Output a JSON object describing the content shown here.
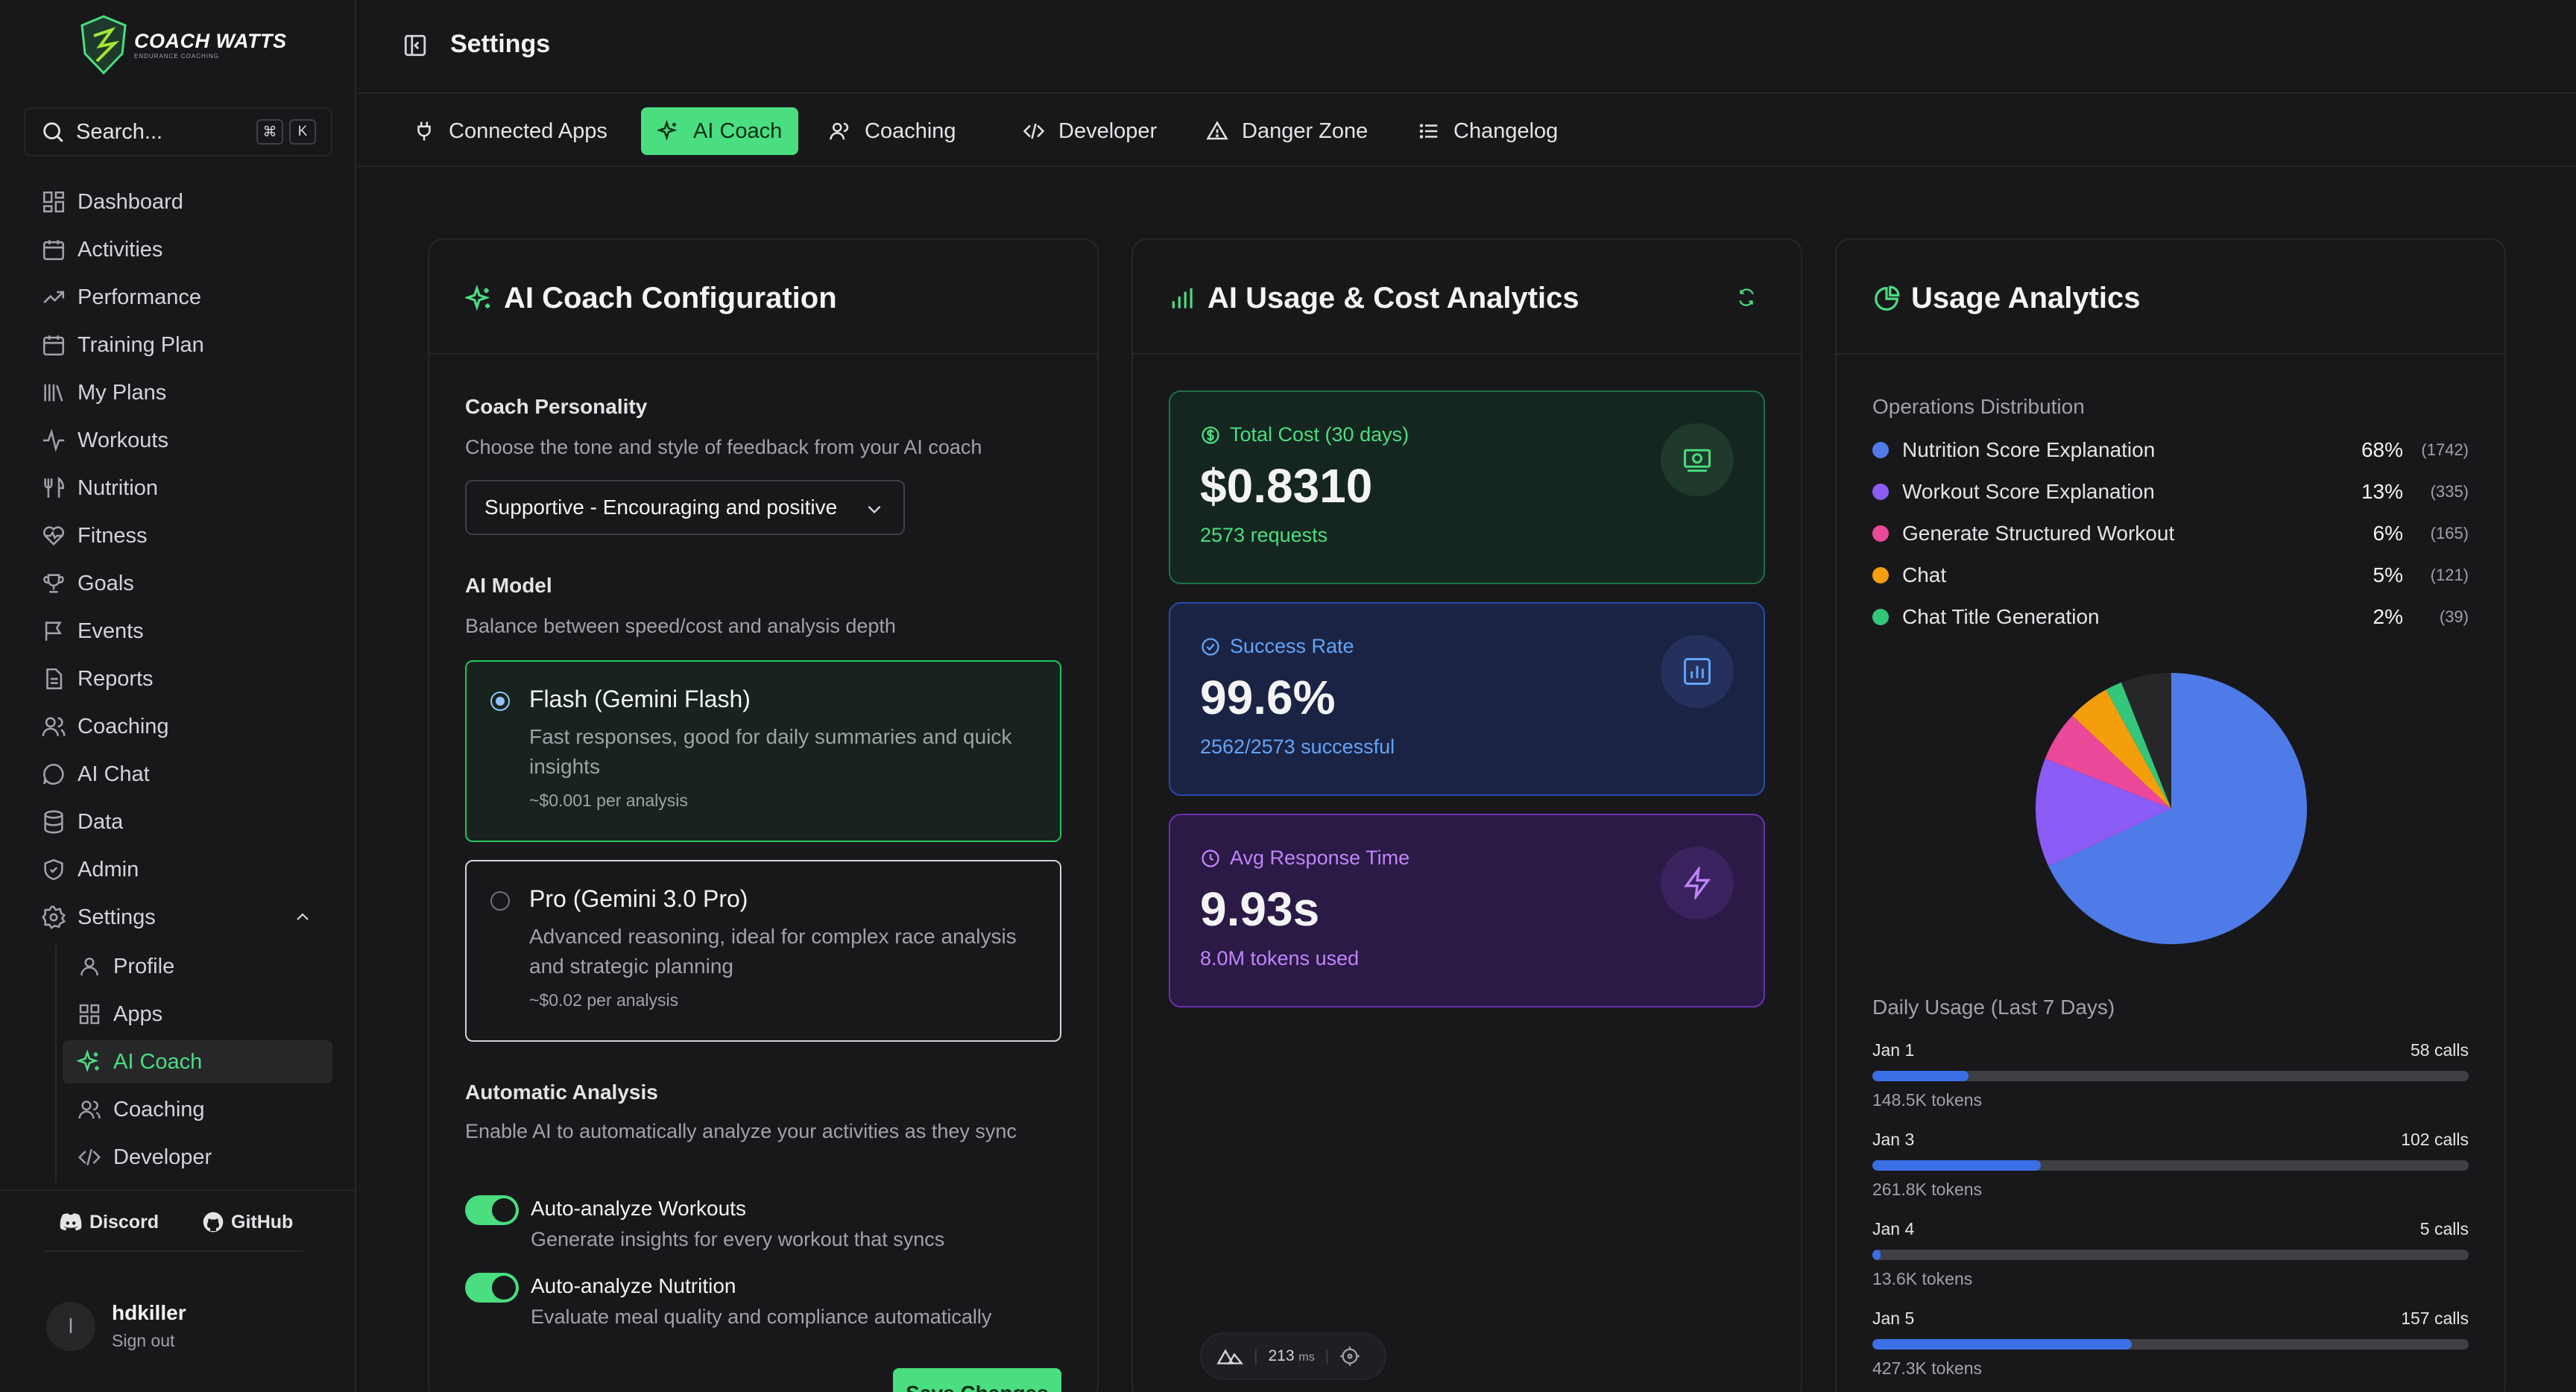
{
  "brand": {
    "name": "COACH WATTS",
    "tagline": "ENDURANCE COACHING"
  },
  "search": {
    "label": "Search...",
    "kbd1": "⌘",
    "kbd2": "K"
  },
  "nav": [
    {
      "label": "Dashboard",
      "icon": "dashboard-icon"
    },
    {
      "label": "Activities",
      "icon": "calendar-icon"
    },
    {
      "label": "Performance",
      "icon": "trend-icon"
    },
    {
      "label": "Training Plan",
      "icon": "calendar-icon"
    },
    {
      "label": "My Plans",
      "icon": "library-icon"
    },
    {
      "label": "Workouts",
      "icon": "pulse-icon"
    },
    {
      "label": "Nutrition",
      "icon": "utensils-icon"
    },
    {
      "label": "Fitness",
      "icon": "heart-pulse-icon"
    },
    {
      "label": "Goals",
      "icon": "trophy-icon"
    },
    {
      "label": "Events",
      "icon": "flag-icon"
    },
    {
      "label": "Reports",
      "icon": "file-icon"
    },
    {
      "label": "Coaching",
      "icon": "users-icon"
    },
    {
      "label": "AI Chat",
      "icon": "chat-icon"
    },
    {
      "label": "Data",
      "icon": "database-icon"
    },
    {
      "label": "Admin",
      "icon": "shield-icon"
    },
    {
      "label": "Settings",
      "icon": "gear-icon"
    }
  ],
  "subnav": [
    {
      "label": "Profile"
    },
    {
      "label": "Apps"
    },
    {
      "label": "AI Coach"
    },
    {
      "label": "Coaching"
    },
    {
      "label": "Developer"
    }
  ],
  "footer": {
    "discord": "Discord",
    "github": "GitHub"
  },
  "user": {
    "initial": "l",
    "name": "hdkiller",
    "signout": "Sign out"
  },
  "header": {
    "title": "Settings"
  },
  "tabs": [
    {
      "label": "Connected Apps"
    },
    {
      "label": "AI Coach"
    },
    {
      "label": "Coaching"
    },
    {
      "label": "Developer"
    },
    {
      "label": "Danger Zone"
    },
    {
      "label": "Changelog"
    }
  ],
  "config": {
    "title": "AI Coach Configuration",
    "personality_label": "Coach Personality",
    "personality_desc": "Choose the tone and style of feedback from your AI coach",
    "personality_value": "Supportive - Encouraging and positive",
    "model_label": "AI Model",
    "model_desc": "Balance between speed/cost and analysis depth",
    "models": [
      {
        "title": "Flash (Gemini Flash)",
        "desc": "Fast responses, good for daily summaries and quick insights",
        "price": "~$0.001 per analysis",
        "selected": true
      },
      {
        "title": "Pro (Gemini 3.0 Pro)",
        "desc": "Advanced reasoning, ideal for complex race analysis and strategic planning",
        "price": "~$0.02 per analysis",
        "selected": false
      }
    ],
    "auto_label": "Automatic Analysis",
    "auto_desc": "Enable AI to automatically analyze your activities as they sync",
    "toggles": [
      {
        "title": "Auto-analyze Workouts",
        "desc": "Generate insights for every workout that syncs",
        "on": true
      },
      {
        "title": "Auto-analyze Nutrition",
        "desc": "Evaluate meal quality and compliance automatically",
        "on": true
      }
    ],
    "save_label": "Save Changes"
  },
  "cost": {
    "title": "AI Usage & Cost Analytics",
    "total_label": "Total Cost (30 days)",
    "total_value": "$0.8310",
    "total_sub": "2573 requests",
    "success_label": "Success Rate",
    "success_value": "99.6%",
    "success_sub": "2562/2573 successful",
    "resp_label": "Avg Response Time",
    "resp_value": "9.93s",
    "resp_sub": "8.0M tokens used",
    "devbar_ms": "213",
    "devbar_unit": "ms"
  },
  "usage": {
    "title": "Usage Analytics",
    "ops_label": "Operations Distribution",
    "daily_label": "Daily Usage (Last 7 Days)"
  },
  "chart_data": {
    "type": "pie",
    "categories": [
      "Nutrition Score Explanation",
      "Workout Score Explanation",
      "Generate Structured Workout",
      "Chat",
      "Chat Title Generation"
    ],
    "values": [
      1742,
      335,
      165,
      121,
      39
    ],
    "percent_labels": [
      "68%",
      "13%",
      "6%",
      "5%",
      "2%"
    ],
    "count_labels": [
      "(1742)",
      "(335)",
      "(165)",
      "(121)",
      "(39)"
    ],
    "colors": [
      "#4f7be8",
      "#8b5cf6",
      "#ec4899",
      "#f59e0b",
      "#34c77b"
    ],
    "remainder_color": "#27272a",
    "daily": [
      {
        "date": "Jan 1",
        "calls": 58,
        "calls_label": "58 calls",
        "tokens": "148.5K tokens"
      },
      {
        "date": "Jan 3",
        "calls": 102,
        "calls_label": "102 calls",
        "tokens": "261.8K tokens"
      },
      {
        "date": "Jan 4",
        "calls": 5,
        "calls_label": "5 calls",
        "tokens": "13.6K tokens"
      },
      {
        "date": "Jan 5",
        "calls": 157,
        "calls_label": "157 calls",
        "tokens": "427.3K tokens"
      }
    ],
    "daily_max_calls": 361
  }
}
